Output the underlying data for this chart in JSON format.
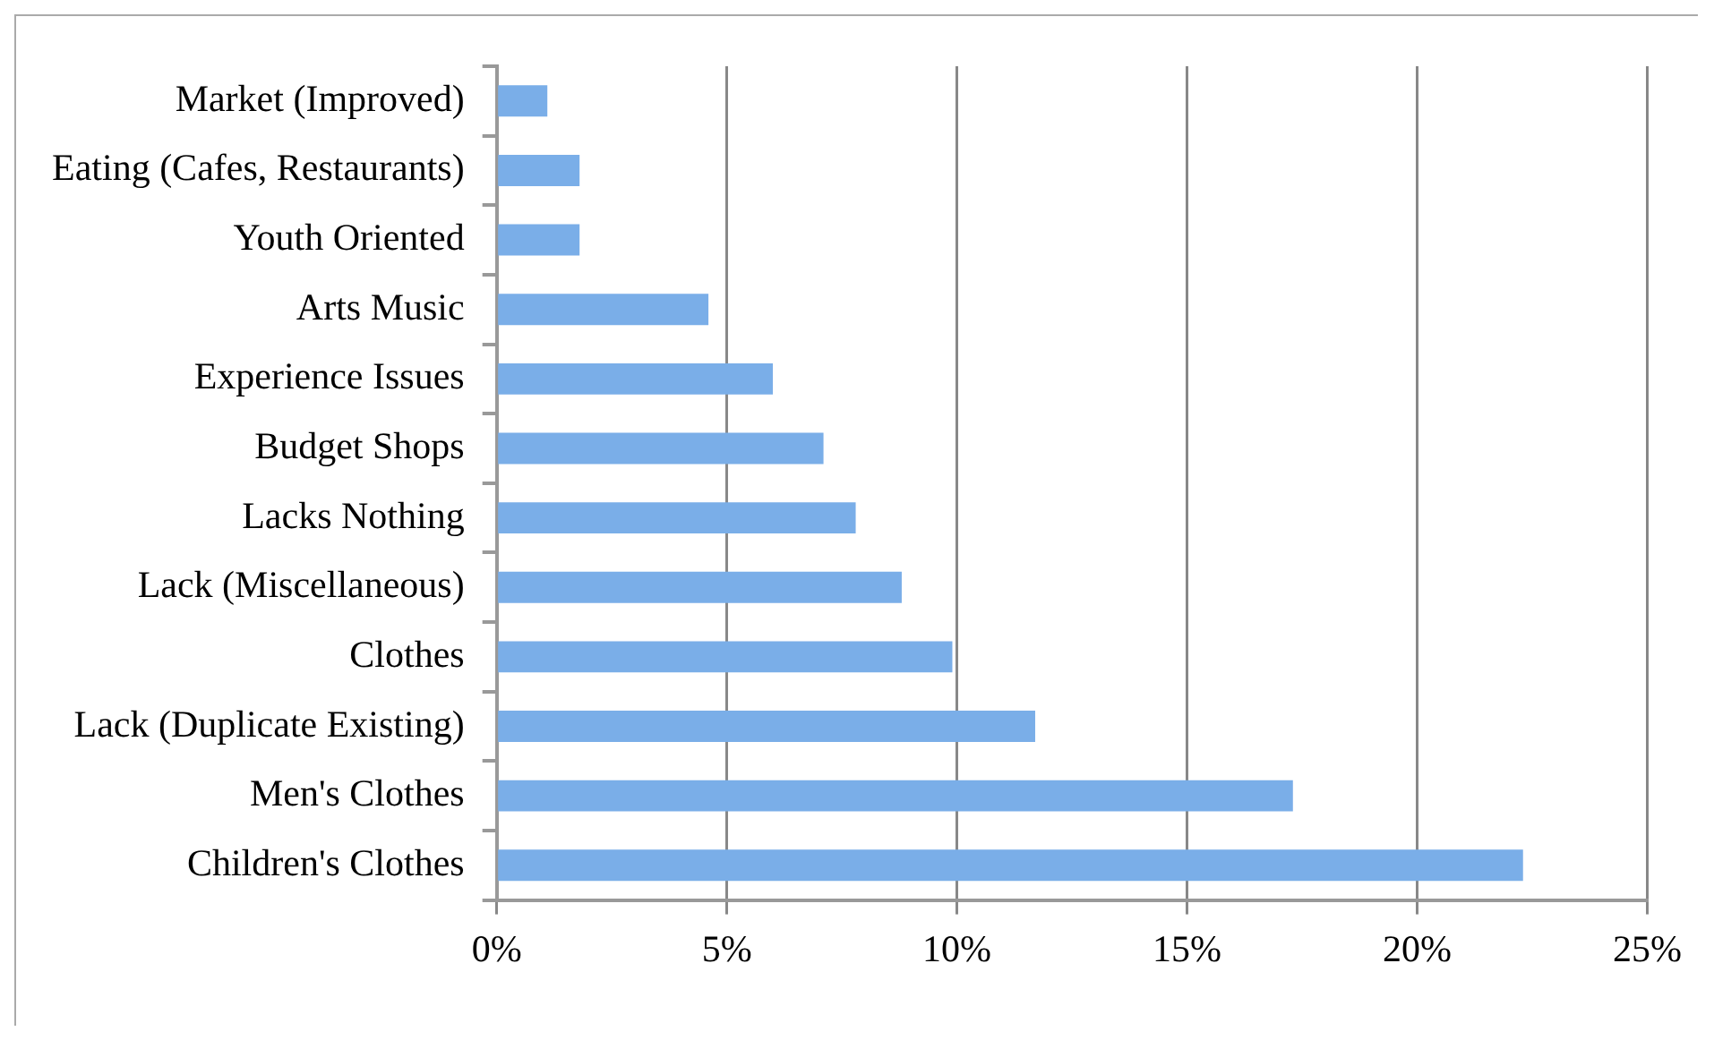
{
  "chart_data": {
    "type": "bar",
    "orientation": "horizontal",
    "categories": [
      "Market (Improved)",
      "Eating (Cafes, Restaurants)",
      "Youth Oriented",
      "Arts Music",
      "Experience Issues",
      "Budget Shops",
      "Lacks Nothing",
      "Lack (Miscellaneous)",
      "Clothes",
      "Lack (Duplicate Existing)",
      "Men's Clothes",
      "Children's Clothes"
    ],
    "values": [
      1.1,
      1.8,
      1.8,
      4.6,
      6.0,
      7.1,
      7.8,
      8.8,
      9.9,
      11.7,
      17.3,
      22.3
    ],
    "color": "#7aaee8",
    "xlim": [
      0,
      25
    ],
    "xticks": [
      {
        "value": 0,
        "label": "0%"
      },
      {
        "value": 5,
        "label": "5%"
      },
      {
        "value": 10,
        "label": "10%"
      },
      {
        "value": 15,
        "label": "15%"
      },
      {
        "value": 20,
        "label": "20%"
      },
      {
        "value": 25,
        "label": "25%"
      }
    ],
    "grid": "x",
    "legend": false
  }
}
